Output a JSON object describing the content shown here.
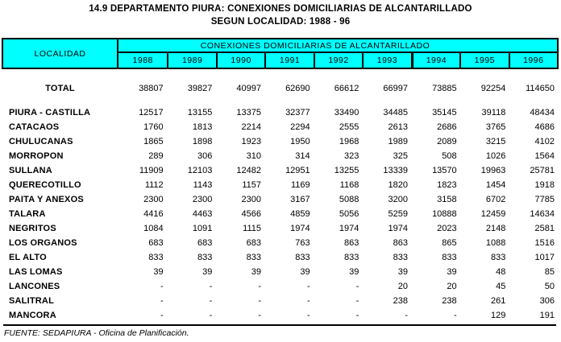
{
  "title": {
    "line1": "14.9  DEPARTAMENTO PIURA: CONEXIONES DOMICILIARIAS DE ALCANTARILLADO",
    "line2": "SEGUN LOCALIDAD: 1988 - 96"
  },
  "table": {
    "header": {
      "locality": "LOCALIDAD",
      "group": "CONEXIONES DOMICILIARIAS DE ALCANTARILLADO",
      "years": [
        "1988",
        "1989",
        "1990",
        "1991",
        "1992",
        "1993",
        "1994",
        "1995",
        "1996"
      ]
    },
    "total_row": {
      "label": "TOTAL",
      "values": [
        38807,
        39827,
        40997,
        62690,
        66612,
        66997,
        73885,
        92254,
        114650
      ]
    },
    "rows": [
      {
        "label": "PIURA - CASTILLA",
        "values": [
          12517,
          13155,
          13375,
          32377,
          33490,
          34485,
          35145,
          39118,
          48434
        ]
      },
      {
        "label": "CATACAOS",
        "values": [
          1760,
          1813,
          2214,
          2294,
          2555,
          2613,
          2686,
          3765,
          4686
        ]
      },
      {
        "label": "CHULUCANAS",
        "values": [
          1865,
          1898,
          1923,
          1950,
          1968,
          1989,
          2089,
          3215,
          4102
        ]
      },
      {
        "label": "MORROPON",
        "values": [
          289,
          306,
          310,
          314,
          323,
          325,
          508,
          1026,
          1564
        ]
      },
      {
        "label": "SULLANA",
        "values": [
          11909,
          12103,
          12482,
          12951,
          13255,
          13339,
          13570,
          19963,
          25781
        ]
      },
      {
        "label": "QUERECOTILLO",
        "values": [
          1112,
          1143,
          1157,
          1169,
          1168,
          1820,
          1823,
          1454,
          1918
        ]
      },
      {
        "label": "PAITA Y ANEXOS",
        "values": [
          2300,
          2300,
          2300,
          3167,
          5088,
          3200,
          3158,
          6702,
          7785
        ]
      },
      {
        "label": "TALARA",
        "values": [
          4416,
          4463,
          4566,
          4859,
          5056,
          5259,
          10888,
          12459,
          14634
        ]
      },
      {
        "label": "NEGRITOS",
        "values": [
          1084,
          1091,
          1115,
          1974,
          1974,
          1974,
          2023,
          2148,
          2581
        ]
      },
      {
        "label": "LOS ORGANOS",
        "values": [
          683,
          683,
          683,
          763,
          863,
          863,
          865,
          1088,
          1516
        ]
      },
      {
        "label": "EL ALTO",
        "values": [
          833,
          833,
          833,
          833,
          833,
          833,
          833,
          833,
          1017
        ]
      },
      {
        "label": "LAS LOMAS",
        "values": [
          39,
          39,
          39,
          39,
          39,
          39,
          39,
          48,
          85
        ]
      },
      {
        "label": "LANCONES",
        "values": [
          "-",
          "-",
          "-",
          "-",
          "-",
          20,
          20,
          45,
          50
        ]
      },
      {
        "label": "SALITRAL",
        "values": [
          "-",
          "-",
          "-",
          "-",
          "-",
          238,
          238,
          261,
          306
        ]
      },
      {
        "label": "MANCORA",
        "values": [
          "-",
          "-",
          "-",
          "-",
          "-",
          "-",
          "-",
          129,
          191
        ]
      }
    ]
  },
  "footer": {
    "source": "FUENTE: SEDAPIURA  - Oficina de Planificación."
  },
  "colors": {
    "header_bg": "#00FFFF",
    "border": "#000000",
    "text": "#000000",
    "background": "#FFFFFF"
  }
}
